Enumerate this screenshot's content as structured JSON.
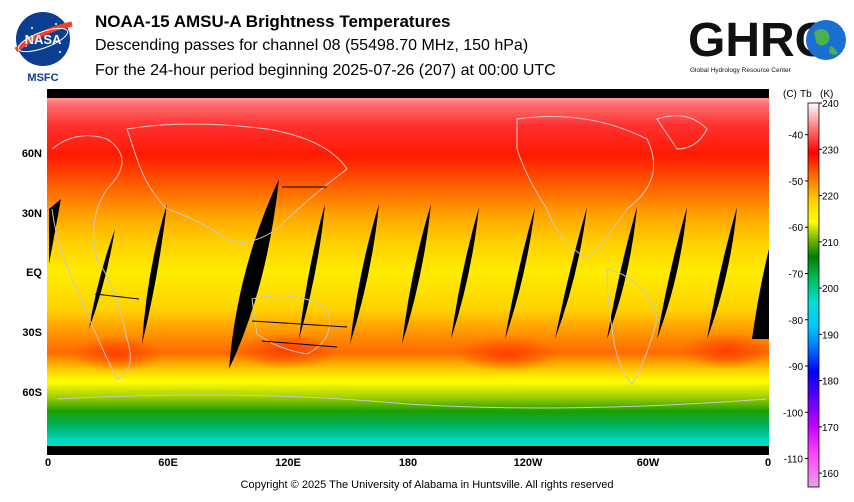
{
  "header": {
    "title": "NOAA-15 AMSU-A Brightness Temperatures",
    "line2": "Descending passes for channel 08 (55498.70 MHz, 150 hPa)",
    "line3": "For the 24-hour period beginning 2025-07-26 (207) at 00:00 UTC"
  },
  "logos": {
    "nasa_text": "NASA",
    "msfc_text": "MSFC",
    "ghrc_text": "GHRC",
    "ghrc_subtitle": "Global Hydrology Resource Center"
  },
  "map": {
    "lat_labels": [
      "60N",
      "30N",
      "EQ",
      "30S",
      "60S"
    ],
    "lon_labels": [
      "0",
      "60E",
      "120E",
      "180",
      "120W",
      "60W",
      "0"
    ]
  },
  "colorbar": {
    "header_c": "(C)",
    "header_tb": "Tb",
    "header_k": "(K)",
    "celsius_ticks": [
      "-40",
      "-50",
      "-60",
      "-70",
      "-80",
      "-90",
      "-100",
      "-110"
    ],
    "kelvin_ticks": [
      "240",
      "230",
      "220",
      "210",
      "200",
      "190",
      "180",
      "170",
      "160"
    ],
    "colors": {
      "240": "#ffffff",
      "232": "#ff5a5a",
      "228": "#ff0000",
      "224": "#ff6a00",
      "220": "#ffcc00",
      "214": "#ffff00",
      "208": "#7fbf00",
      "204": "#007f00",
      "200": "#00bf5f",
      "195": "#00e0d8",
      "190": "#00c8ff",
      "185": "#0070ff",
      "180": "#0000ff",
      "175": "#6000ff",
      "170": "#c000ff",
      "165": "#ff40ff",
      "160": "#e8a0e8"
    }
  },
  "footer": {
    "copyright": "Copyright © 2025 The University of Alabama in Huntsville.  All rights reserved"
  }
}
